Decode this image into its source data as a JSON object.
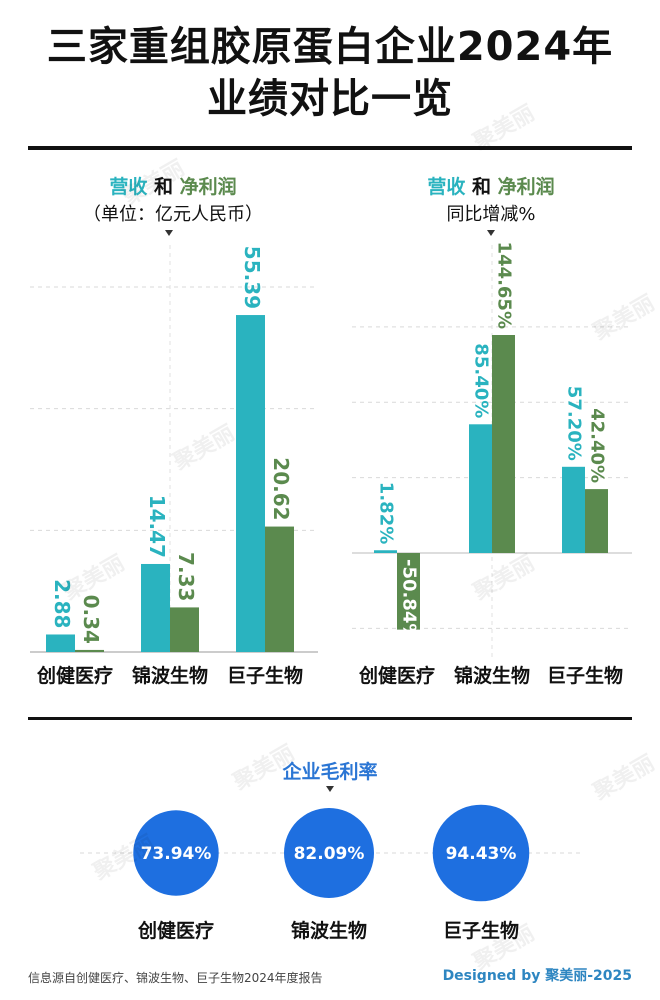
{
  "title_line1": "三家重组胶原蛋白企业2024年",
  "title_line2": "业绩对比一览",
  "left_legend": {
    "revenue": "营收",
    "and": "和",
    "profit": "净利润",
    "unit": "（单位：亿元人民币）"
  },
  "right_legend": {
    "revenue": "营收",
    "and": "和",
    "profit": "净利润",
    "sub": "同比增减%"
  },
  "gross_margin_title": "企业毛利率",
  "source": "信息源自创健医疗、锦波生物、巨子生物2024年度报告",
  "designed_by": "Designed by 聚美丽-2025",
  "watermark": "聚美丽",
  "colors": {
    "revenue": "#2ab3bf",
    "profit": "#5b8a4e",
    "margin": "#1e6fe0"
  },
  "chart_data": [
    {
      "type": "bar",
      "title": "营收 和 净利润",
      "ylabel": "（单位：亿元人民币）",
      "categories": [
        "创健医疗",
        "锦波生物",
        "巨子生物"
      ],
      "series": [
        {
          "name": "营收",
          "values": [
            2.88,
            14.47,
            55.39
          ],
          "labels": [
            "2.88",
            "14.47",
            "55.39"
          ]
        },
        {
          "name": "净利润",
          "values": [
            0.34,
            7.33,
            20.62
          ],
          "labels": [
            "0.34",
            "7.33",
            "20.62"
          ]
        }
      ],
      "ylim": [
        0,
        60
      ],
      "grid": true
    },
    {
      "type": "bar",
      "title": "营收 和 净利润",
      "ylabel": "同比增减%",
      "categories": [
        "创健医疗",
        "锦波生物",
        "巨子生物"
      ],
      "series": [
        {
          "name": "营收",
          "values": [
            1.82,
            85.4,
            57.2
          ],
          "labels": [
            "1.82%",
            "85.40%",
            "57.20%"
          ]
        },
        {
          "name": "净利润",
          "values": [
            -50.84,
            144.65,
            42.4
          ],
          "labels": [
            "-50.84%",
            "144.65%",
            "42.40%"
          ]
        }
      ],
      "ylim": [
        -60,
        180
      ],
      "grid": true
    },
    {
      "type": "bubble",
      "title": "企业毛利率",
      "categories": [
        "创健医疗",
        "锦波生物",
        "巨子生物"
      ],
      "values": [
        73.94,
        82.09,
        94.43
      ],
      "labels": [
        "73.94%",
        "82.09%",
        "94.43%"
      ]
    }
  ]
}
